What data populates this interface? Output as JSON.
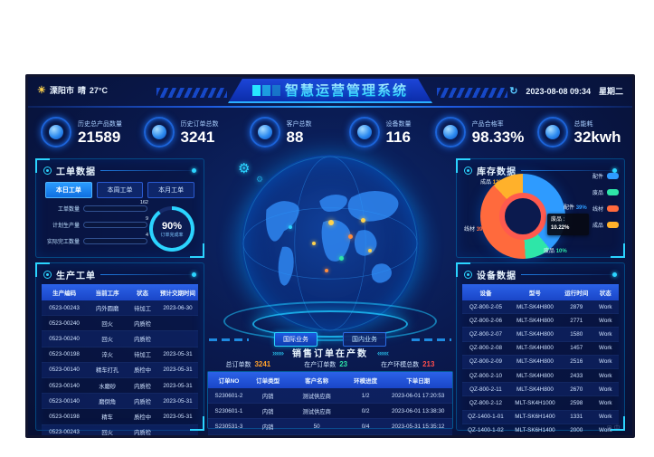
{
  "header": {
    "city": "溧阳市",
    "weather": "晴",
    "temperature": "27°C",
    "title": "智慧运营管理系统",
    "datetime": "2023-08-08 09:34",
    "weekday": "星期二",
    "refresh_icon": "↻",
    "sun_icon": "☀"
  },
  "kpis": [
    {
      "label": "历史总产品数量",
      "value": "21589"
    },
    {
      "label": "历史订单总数",
      "value": "3241"
    },
    {
      "label": "客户总数",
      "value": "88"
    },
    {
      "label": "设备数量",
      "value": "116"
    },
    {
      "label": "产品合格率",
      "value": "98.33%"
    },
    {
      "label": "总能耗",
      "value": "32kwh"
    }
  ],
  "work_orders_panel": {
    "title": "工单数据",
    "tabs": [
      {
        "label": "本日工单",
        "active": true
      },
      {
        "label": "本周工单",
        "active": false
      },
      {
        "label": "本月工单",
        "active": false
      }
    ],
    "bars": [
      {
        "label": "工单数量",
        "value": "162",
        "pct": "96%",
        "color": "#2ee6a8"
      },
      {
        "label": "计划生产量",
        "value": "9",
        "pct": "10%",
        "color": "#ffaa2b"
      },
      {
        "label": "实际完工数量",
        "value": "4",
        "pct": "7%",
        "color": "#c06bff"
      }
    ],
    "gauge": {
      "value": "90%",
      "pct": 90,
      "label": "订单完成率",
      "color": "#2bd4ff"
    }
  },
  "production_panel": {
    "title": "生产工单",
    "table": {
      "columns": [
        "生产编码",
        "当前工序",
        "状态",
        "预计交期时间"
      ],
      "rows": [
        [
          "0523-00243",
          "内外圆磨",
          "待加工",
          "2023-06-30"
        ],
        [
          "0523-00240",
          "回火",
          "内质检",
          ""
        ],
        [
          "0523-00240",
          "回火",
          "内质检",
          ""
        ],
        [
          "0523-00198",
          "淬火",
          "待加工",
          "2023-05-31"
        ],
        [
          "0523-00140",
          "精车打孔",
          "质检中",
          "2023-05-31"
        ],
        [
          "0523-00140",
          "水磨砂",
          "内质检",
          "2023-05-31"
        ],
        [
          "0523-00140",
          "磨倒角",
          "内质检",
          "2023-05-31"
        ],
        [
          "0523-00198",
          "精车",
          "质检中",
          "2023-05-31"
        ],
        [
          "0523-00243",
          "回火",
          "内质检",
          ""
        ],
        [
          "0523-00245",
          "回火",
          "已完成",
          "2023-06-30"
        ]
      ]
    }
  },
  "inventory_panel": {
    "title": "库存数据",
    "slices": [
      {
        "label": "配件",
        "pct": 39,
        "pct_label": "39%",
        "color": "#2e9bff"
      },
      {
        "label": "废品",
        "pct": 10,
        "pct_label": "10%",
        "color": "#2ee6a8"
      },
      {
        "label": "线材",
        "pct": 39,
        "pct_label": "39%",
        "color": "#ff6a3d"
      },
      {
        "label": "成品",
        "pct": 12,
        "pct_label": "12%",
        "color": "#ffb12b"
      }
    ],
    "inner_ring_color": "#ff5a4e",
    "tooltip": {
      "name": "废品",
      "value": "10.22%"
    }
  },
  "devices_panel": {
    "title": "设备数据",
    "table": {
      "columns": [
        "设备",
        "型号",
        "运行时间",
        "状态"
      ],
      "rows": [
        [
          "QZ-800-2-05",
          "MLT-SK4H800",
          "2879",
          "Work"
        ],
        [
          "QZ-800-2-06",
          "MLT-SK4H800",
          "2771",
          "Work"
        ],
        [
          "QZ-800-2-07",
          "MLT-SK4H800",
          "1580",
          "Work"
        ],
        [
          "QZ-800-2-08",
          "MLT-SK4H800",
          "1457",
          "Work"
        ],
        [
          "QZ-800-2-09",
          "MLT-SK4H800",
          "2516",
          "Work"
        ],
        [
          "QZ-800-2-10",
          "MLT-SK4H800",
          "2433",
          "Work"
        ],
        [
          "QZ-800-2-11",
          "MLT-SK4H800",
          "2670",
          "Work"
        ],
        [
          "QZ-800-2-12",
          "MLT-SK4H1000",
          "2598",
          "Work"
        ],
        [
          "QZ-1400-1-01",
          "MLT-SK6H1400",
          "1331",
          "Work"
        ],
        [
          "QZ-1400-1-02",
          "MLT-SK6H1400",
          "2000",
          "Work"
        ]
      ]
    }
  },
  "center": {
    "buttons": [
      {
        "label": "国际业务",
        "active": true
      },
      {
        "label": "国内业务",
        "active": false
      }
    ],
    "section_title": "销售订单在产数",
    "deco_left": "»»»",
    "deco_right": "«««",
    "stats": [
      {
        "label": "总订单数",
        "value": "3241",
        "color": "#ffa02b"
      },
      {
        "label": "在产订单数",
        "value": "23",
        "color": "#2ee6a8"
      },
      {
        "label": "在产环模总数",
        "value": "213",
        "color": "#ff4d4d"
      }
    ],
    "orders_table": {
      "columns": [
        "订单NO",
        "订单类型",
        "客户名称",
        "环模进度",
        "下单日期"
      ],
      "rows": [
        [
          "S230601-2",
          "内销",
          "测试供应商",
          "1/2",
          "2023-06-01 17:20:53"
        ],
        [
          "S230601-1",
          "内销",
          "测试供应商",
          "0/2",
          "2023-06-01 13:38:30"
        ],
        [
          "S230531-3",
          "内销",
          "50",
          "0/4",
          "2023-05-31 15:35:12"
        ]
      ]
    }
  },
  "chart_data": [
    {
      "type": "pie",
      "title": "库存数据",
      "categories": [
        "配件",
        "废品",
        "线材",
        "成品"
      ],
      "values": [
        39,
        10.22,
        39,
        12
      ],
      "colors": [
        "#2e9bff",
        "#2ee6a8",
        "#ff6a3d",
        "#ffb12b"
      ],
      "legend_position": "right"
    },
    {
      "type": "bar",
      "title": "工单数据(本日工单)",
      "categories": [
        "工单数量",
        "计划生产量",
        "实际完工数量"
      ],
      "values": [
        162,
        9,
        4
      ],
      "colors": [
        "#2ee6a8",
        "#ffaa2b",
        "#c06bff"
      ]
    },
    {
      "type": "gauge",
      "title": "订单完成率",
      "values": [
        90
      ],
      "unit": "%"
    }
  ]
}
